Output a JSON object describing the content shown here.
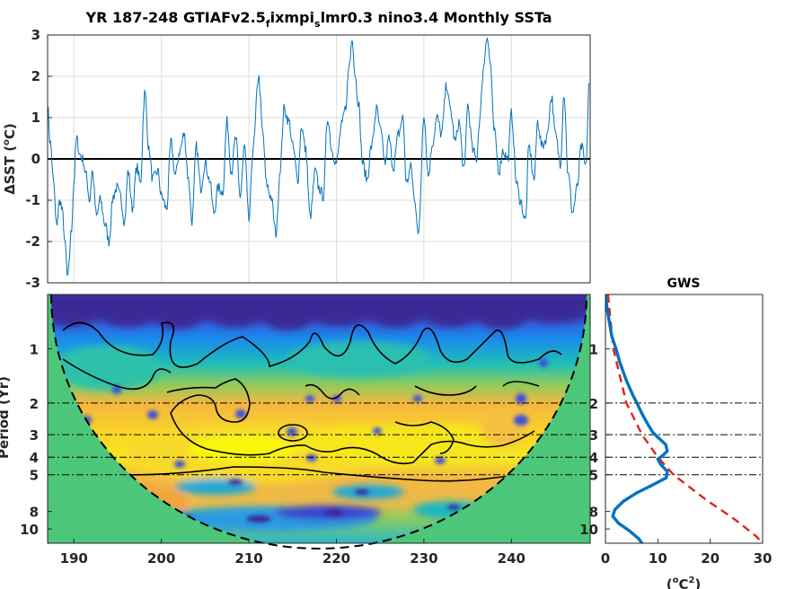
{
  "figure": {
    "title_main": "YR 187-248 GTIAFv2.5",
    "title_sub1": "f",
    "title_mid": "ixmpi",
    "title_sub2": "s",
    "title_end": "lmr0.3 nino3.4 Monthly SSTa",
    "gws_title": "GWS"
  },
  "chart_data": [
    {
      "id": "timeseries",
      "type": "line",
      "title": "YR 187-248 GTIAFv2.5fixmpislmr0.3 nino3.4 Monthly SSTa",
      "ylabel": "ΔSST (°C)",
      "ylabel_prefix": "ΔSST (",
      "ylabel_degree": "o",
      "ylabel_suffix": "C)",
      "xlim": [
        187,
        249
      ],
      "ylim": [
        -3,
        3
      ],
      "yticks": [
        "3",
        "2",
        "1",
        "0",
        "-1",
        "-2",
        "-3"
      ],
      "ytick_values": [
        3,
        2,
        1,
        0,
        -1,
        -2,
        -3
      ],
      "grid": true,
      "zero_line": true,
      "line_color": "#0072BD",
      "anchors": {
        "x": [
          187.0,
          187.3,
          187.7,
          188.0,
          188.4,
          188.7,
          189.0,
          189.3,
          189.7,
          190.0,
          190.3,
          190.7,
          191.0,
          191.4,
          191.8,
          192.1,
          192.6,
          193.0,
          193.6,
          194.0,
          194.5,
          194.9,
          195.3,
          195.8,
          196.2,
          196.7,
          197.2,
          197.6,
          198.1,
          198.6,
          199.0,
          199.6,
          200.0,
          200.6,
          201.1,
          201.6,
          202.1,
          202.6,
          203.1,
          203.5,
          204.0,
          204.5,
          205.0,
          205.5,
          206.0,
          206.5,
          207.0,
          207.5,
          208.0,
          208.5,
          209.0,
          209.5,
          210.0,
          210.5,
          211.1,
          211.6,
          212.0,
          212.5,
          213.1,
          213.6,
          214.0,
          214.6,
          215.0,
          215.6,
          216.0,
          216.5,
          217.0,
          217.6,
          218.0,
          218.5,
          219.0,
          219.5,
          220.0,
          220.6,
          221.0,
          221.5,
          221.8,
          222.1,
          222.5,
          223.0,
          223.5,
          224.0,
          224.6,
          225.0,
          225.6,
          226.0,
          226.5,
          227.1,
          227.6,
          228.0,
          228.5,
          229.0,
          229.4,
          230.0,
          230.5,
          231.0,
          231.5,
          232.0,
          232.6,
          233.0,
          233.6,
          234.0,
          234.6,
          235.0,
          235.6,
          236.0,
          236.4,
          236.8,
          237.2,
          237.6,
          238.0,
          238.6,
          239.0,
          239.6,
          240.0,
          240.6,
          241.0,
          241.6,
          242.0,
          242.6,
          243.0,
          243.5,
          244.0,
          244.6,
          245.0,
          245.6,
          246.0,
          246.5,
          247.0,
          247.5,
          248.0,
          248.5,
          248.9
        ],
        "y": [
          1.3,
          0.4,
          -0.6,
          -1.6,
          -1.0,
          -1.3,
          -2.1,
          -2.9,
          -1.8,
          -0.6,
          0.5,
          0.1,
          0.0,
          -0.4,
          -1.0,
          -0.3,
          -1.4,
          -1.0,
          -1.6,
          -2.0,
          -0.9,
          -0.7,
          -0.9,
          -1.5,
          -0.3,
          -1.2,
          -0.2,
          -0.6,
          1.6,
          0.2,
          -0.5,
          -0.3,
          -0.9,
          -1.2,
          0.4,
          -0.4,
          0.2,
          0.6,
          -0.5,
          -1.5,
          0.3,
          -0.7,
          -0.1,
          -0.5,
          -1.3,
          -0.7,
          -0.8,
          0.9,
          -0.3,
          0.5,
          -0.9,
          0.3,
          -1.5,
          0.3,
          2.0,
          0.6,
          -0.6,
          -0.9,
          -1.8,
          -0.2,
          1.2,
          0.9,
          0.3,
          -0.5,
          0.8,
          0.2,
          -1.4,
          -0.3,
          -0.7,
          -0.9,
          1.0,
          0.2,
          -0.1,
          0.8,
          1.2,
          2.3,
          3.0,
          2.1,
          1.4,
          -0.1,
          -0.5,
          0.3,
          1.2,
          0.7,
          -0.1,
          0.5,
          -0.2,
          0.6,
          1.0,
          -0.6,
          -0.2,
          -1.1,
          -1.8,
          1.1,
          -0.4,
          0.4,
          1.0,
          0.6,
          1.8,
          1.2,
          0.4,
          0.9,
          -0.3,
          1.3,
          0.2,
          0.0,
          1.0,
          2.2,
          3.0,
          2.3,
          0.7,
          -0.3,
          0.2,
          0.0,
          1.1,
          -0.6,
          -1.0,
          -1.5,
          0.3,
          -0.5,
          0.9,
          0.3,
          0.5,
          1.5,
          0.6,
          -0.1,
          1.6,
          -0.4,
          -1.3,
          -0.7,
          0.3,
          -0.2,
          1.9
        ]
      }
    },
    {
      "id": "wavelet",
      "type": "heatmap",
      "ylabel": "Period (Yr)",
      "xlim": [
        187,
        249
      ],
      "xticks": [
        "190",
        "200",
        "210",
        "220",
        "230",
        "240"
      ],
      "xtick_values": [
        190,
        200,
        210,
        220,
        230,
        240
      ],
      "yticks": [
        "1",
        "2",
        "3",
        "4",
        "5",
        "8",
        "10"
      ],
      "ytick_values": [
        1,
        2,
        3,
        4,
        5,
        8,
        10
      ],
      "yscale": "log",
      "ylim": [
        0.5,
        12
      ],
      "reference_periods": [
        2,
        3,
        4,
        5
      ],
      "band_peaks_period": 3.4,
      "cone_of_influence": true,
      "outside_coi_color": "#4CC779"
    },
    {
      "id": "gws",
      "type": "line",
      "title": "GWS",
      "xlabel": "(°C²)",
      "xlabel_prefix": "(",
      "xlabel_degree": "o",
      "xlabel_unit": "C",
      "xlabel_power": "2",
      "xlabel_suffix": ")",
      "xlim": [
        0,
        30
      ],
      "xticks": [
        "0",
        "10",
        "20",
        "30"
      ],
      "xtick_values": [
        0,
        10,
        20,
        30
      ],
      "yscale": "log",
      "ylim": [
        0.5,
        12
      ],
      "yticks": [
        "1",
        "2",
        "3",
        "4",
        "5",
        "8",
        "10"
      ],
      "ytick_values": [
        1,
        2,
        3,
        4,
        5,
        8,
        10
      ],
      "series": [
        {
          "color": "#0072BD",
          "period": [
            0.5,
            0.6,
            0.7,
            0.85,
            1.0,
            1.2,
            1.5,
            1.8,
            2.0,
            2.3,
            2.6,
            2.9,
            3.1,
            3.4,
            3.7,
            3.9,
            4.1,
            4.4,
            4.8,
            5.2,
            5.7,
            6.3,
            7.0,
            7.8,
            8.5,
            9.3,
            10.2,
            11.3,
            12.0
          ],
          "power": [
            0.0,
            0.3,
            0.7,
            1.2,
            2.0,
            2.8,
            4.0,
            5.2,
            6.0,
            7.0,
            8.0,
            9.0,
            10.0,
            11.5,
            11.8,
            11.0,
            10.0,
            10.6,
            11.8,
            11.6,
            9.0,
            6.0,
            3.5,
            1.8,
            1.4,
            2.5,
            4.5,
            6.3,
            7.0
          ]
        },
        {
          "color": "#E0221C",
          "dashed": true,
          "period": [
            0.5,
            1.0,
            2.0,
            3.0,
            4.0,
            5.0,
            6.0,
            7.0,
            8.0,
            9.0,
            10.0,
            11.0,
            12.0
          ],
          "power": [
            0.5,
            1.5,
            4.0,
            7.0,
            10.0,
            13.0,
            16.5,
            19.5,
            22.5,
            25.0,
            27.0,
            28.8,
            30.0
          ]
        }
      ]
    }
  ]
}
